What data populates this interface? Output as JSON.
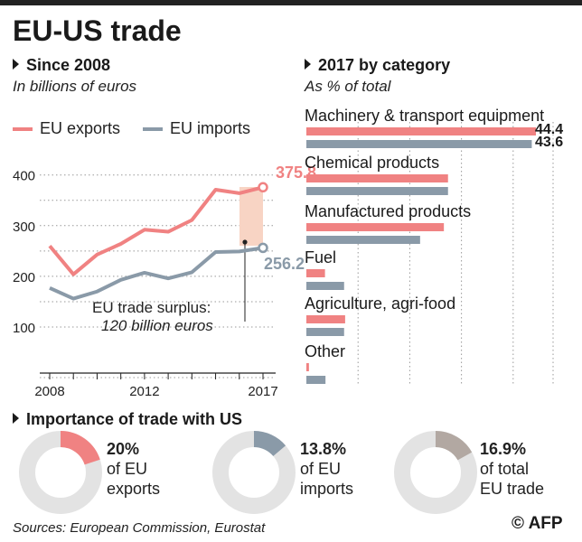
{
  "title": "EU-US trade",
  "left": {
    "heading": "Since 2008",
    "subtitle": "In billions of euros",
    "legend": {
      "exports": "EU exports",
      "imports": "EU imports"
    },
    "end_labels": {
      "exports": "375.8",
      "imports": "256.2"
    },
    "annotation": {
      "line1": "EU trade surplus:",
      "line2": "120 billion euros"
    }
  },
  "right": {
    "heading": "2017 by category",
    "subtitle": "As % of total"
  },
  "bottom": {
    "heading": "Importance of trade with US",
    "donuts": [
      {
        "pct": "20%",
        "line2": "of EU",
        "line3": "exports",
        "value": 20,
        "color": "#f08282"
      },
      {
        "pct": "13.8%",
        "line2": "of EU",
        "line3": "imports",
        "value": 13.8,
        "color": "#8a9aa8"
      },
      {
        "pct": "16.9%",
        "line2": "of total",
        "line3": "EU trade",
        "value": 16.9,
        "color": "#b2a8a2"
      }
    ]
  },
  "footer": {
    "source": "Sources: European Commission, Eurostat",
    "credit": "AFP",
    "copyright": "©"
  },
  "colors": {
    "exports": "#f08282",
    "imports": "#8a9aa8",
    "surplus": "#f8d4c4",
    "grid": "#999999",
    "donut_bg": "#e3e3e3"
  },
  "chart_data": [
    {
      "type": "line",
      "x": [
        2008,
        2009,
        2010,
        2011,
        2012,
        2013,
        2014,
        2015,
        2016,
        2017
      ],
      "series": [
        {
          "name": "EU exports",
          "values": [
            260,
            204,
            243,
            264,
            292,
            288,
            311,
            371,
            364,
            375.8
          ]
        },
        {
          "name": "EU imports",
          "values": [
            177,
            156,
            170,
            193,
            207,
            196,
            208,
            248,
            249,
            256.2
          ]
        }
      ],
      "yticks": [
        100,
        200,
        300,
        400
      ],
      "xticks": [
        2008,
        2012,
        2017
      ],
      "ylim": [
        0,
        420
      ],
      "xlim": [
        2008,
        2017
      ],
      "grid": true
    },
    {
      "type": "bar",
      "orientation": "horizontal",
      "categories": [
        "Machinery & transport equipment",
        "Chemical products",
        "Manufactured products",
        "Fuel",
        "Agriculture, agri-food",
        "Other"
      ],
      "series": [
        {
          "name": "EU exports",
          "values": [
            44.4,
            27.4,
            26.6,
            3.6,
            7.5,
            0.5
          ]
        },
        {
          "name": "EU imports",
          "values": [
            43.6,
            27.4,
            22.0,
            7.3,
            7.3,
            3.7
          ]
        }
      ],
      "value_labels": [
        "44.4",
        "43.6"
      ],
      "xlim": [
        0,
        44.4
      ],
      "grid": true
    }
  ]
}
